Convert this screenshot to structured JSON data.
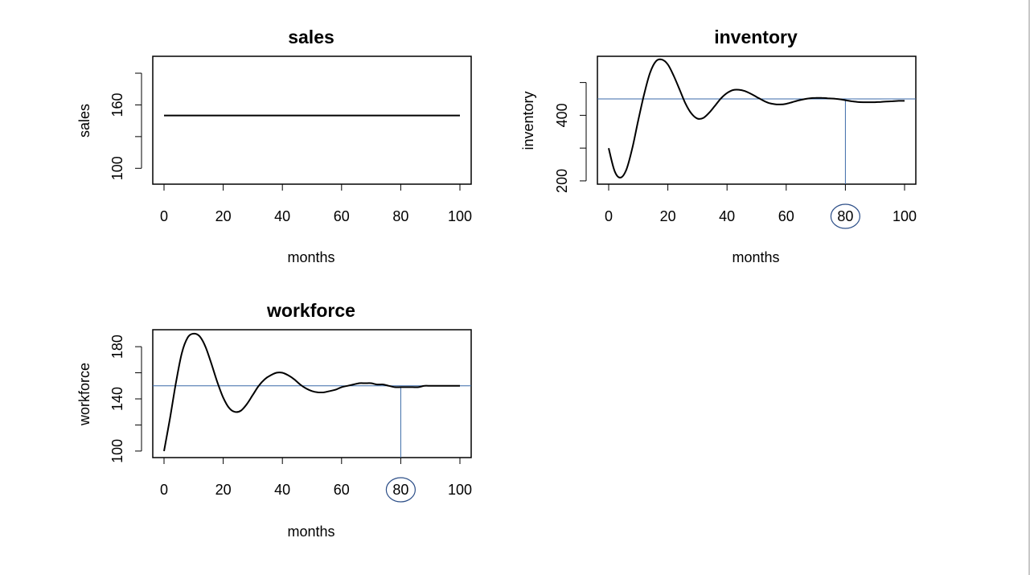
{
  "chart_data": [
    {
      "type": "line",
      "title": "sales",
      "xlabel": "months",
      "ylabel": "sales",
      "xlim": [
        0,
        100
      ],
      "ylim": [
        85,
        206
      ],
      "xticks": [
        0,
        20,
        40,
        60,
        80,
        100
      ],
      "yticks": [
        100,
        130,
        160,
        190
      ],
      "ytick_labels": [
        "100",
        "",
        "160",
        ""
      ],
      "x": [
        0,
        100
      ],
      "series": [
        {
          "values": [
            150,
            150
          ]
        }
      ],
      "reference_lines": [],
      "highlight_tick": null,
      "grid": false
    },
    {
      "type": "line",
      "title": "inventory",
      "xlabel": "months",
      "ylabel": "inventory",
      "xlim": [
        0,
        100
      ],
      "ylim": [
        190,
        580
      ],
      "xticks": [
        0,
        20,
        40,
        60,
        80,
        100
      ],
      "yticks": [
        200,
        300,
        400,
        500
      ],
      "ytick_labels": [
        "200",
        "",
        "400",
        ""
      ],
      "x": [
        0,
        2,
        4,
        6,
        8,
        10,
        12,
        14,
        16,
        18,
        20,
        22,
        24,
        26,
        28,
        30,
        32,
        34,
        36,
        38,
        40,
        42,
        44,
        46,
        48,
        50,
        52,
        54,
        56,
        58,
        60,
        62,
        64,
        66,
        68,
        70,
        72,
        74,
        76,
        78,
        80,
        82,
        84,
        86,
        88,
        90,
        92,
        94,
        96,
        98,
        100
      ],
      "series": [
        {
          "values": [
            300,
            230,
            210,
            235,
            300,
            385,
            465,
            530,
            565,
            570,
            555,
            520,
            478,
            435,
            405,
            390,
            392,
            408,
            430,
            452,
            468,
            477,
            478,
            474,
            466,
            456,
            446,
            438,
            434,
            433,
            435,
            440,
            445,
            449,
            452,
            453,
            453,
            452,
            451,
            449,
            446,
            443,
            441,
            440,
            440,
            440,
            441,
            442,
            443,
            444,
            444
          ]
        }
      ],
      "reference_lines": [
        {
          "axis": "y",
          "value": 450
        },
        {
          "axis": "x",
          "value": 80
        }
      ],
      "highlight_tick": 80,
      "grid": false
    },
    {
      "type": "line",
      "title": "workforce",
      "xlabel": "months",
      "ylabel": "workforce",
      "xlim": [
        0,
        100
      ],
      "ylim": [
        95,
        193
      ],
      "xticks": [
        0,
        20,
        40,
        60,
        80,
        100
      ],
      "yticks": [
        100,
        120,
        140,
        160,
        180
      ],
      "ytick_labels": [
        "100",
        "",
        "140",
        "",
        "180"
      ],
      "x": [
        0,
        2,
        4,
        6,
        8,
        10,
        12,
        14,
        16,
        18,
        20,
        22,
        24,
        26,
        28,
        30,
        32,
        34,
        36,
        38,
        40,
        42,
        44,
        46,
        48,
        50,
        52,
        54,
        56,
        58,
        60,
        62,
        64,
        66,
        68,
        70,
        72,
        74,
        76,
        78,
        80,
        82,
        84,
        86,
        88,
        90,
        92,
        94,
        96,
        98,
        100
      ],
      "series": [
        {
          "values": [
            100,
            125,
            152,
            175,
            187,
            190,
            188,
            180,
            167,
            153,
            141,
            133,
            130,
            131,
            136,
            143,
            150,
            155,
            158,
            160,
            160,
            158,
            155,
            151,
            148,
            146,
            145,
            145,
            146,
            147,
            149,
            150,
            151,
            152,
            152,
            152,
            151,
            151,
            150,
            149,
            149,
            149,
            149,
            149,
            150,
            150,
            150,
            150,
            150,
            150,
            150
          ]
        }
      ],
      "reference_lines": [
        {
          "axis": "y",
          "value": 150
        },
        {
          "axis": "x",
          "value": 80
        }
      ],
      "highlight_tick": 80,
      "grid": false
    }
  ],
  "colors": {
    "line": "#000000",
    "reference": "#3a6aa8",
    "highlight": "#2d4f88"
  }
}
